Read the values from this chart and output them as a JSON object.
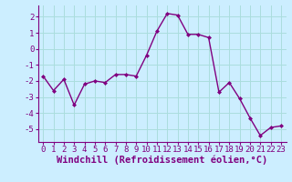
{
  "x": [
    0,
    1,
    2,
    3,
    4,
    5,
    6,
    7,
    8,
    9,
    10,
    11,
    12,
    13,
    14,
    15,
    16,
    17,
    18,
    19,
    20,
    21,
    22,
    23
  ],
  "y": [
    -1.7,
    -2.6,
    -1.9,
    -3.5,
    -2.2,
    -2.0,
    -2.1,
    -1.6,
    -1.6,
    -1.7,
    -0.4,
    1.1,
    2.2,
    2.1,
    0.9,
    0.9,
    0.7,
    -2.7,
    -2.1,
    -3.1,
    -4.3,
    -5.4,
    -4.9,
    -4.8
  ],
  "line_color": "#800080",
  "marker": "D",
  "marker_size": 2.0,
  "line_width": 1.0,
  "bg_color": "#cceeff",
  "grid_color": "#aadddd",
  "xlabel": "Windchill (Refroidissement éolien,°C)",
  "xlabel_fontsize": 7.5,
  "tick_fontsize": 6.5,
  "ylim": [
    -5.8,
    2.7
  ],
  "xlim": [
    -0.5,
    23.5
  ],
  "yticks": [
    -5,
    -4,
    -3,
    -2,
    -1,
    0,
    1,
    2
  ],
  "xticks": [
    0,
    1,
    2,
    3,
    4,
    5,
    6,
    7,
    8,
    9,
    10,
    11,
    12,
    13,
    14,
    15,
    16,
    17,
    18,
    19,
    20,
    21,
    22,
    23
  ],
  "spine_color": "#800080",
  "tick_color": "#800080",
  "label_color": "#800080"
}
